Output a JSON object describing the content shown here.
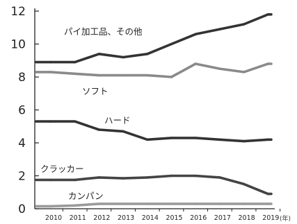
{
  "chart_data": {
    "type": "line",
    "x": [
      2010,
      2011,
      2012,
      2013,
      2014,
      2015,
      2016,
      2017,
      2018,
      2019
    ],
    "x_tick_labels": [
      "2010",
      "2011",
      "2012",
      "2013",
      "2014",
      "2015",
      "2016",
      "2017",
      "2018",
      "2019"
    ],
    "x_unit": "(年)",
    "ylim": [
      0,
      12
    ],
    "y_ticks": [
      0,
      2,
      4,
      6,
      8,
      10,
      12
    ],
    "grid": false,
    "legend": "inline",
    "series": [
      {
        "name": "パイ加工品、その他",
        "color": "#333333",
        "values": [
          8.9,
          8.9,
          9.4,
          9.2,
          9.4,
          10.0,
          10.6,
          10.9,
          11.2,
          11.8
        ]
      },
      {
        "name": "ソフト",
        "color": "#8a8a8a",
        "values": [
          8.3,
          8.2,
          8.1,
          8.1,
          8.1,
          8.0,
          8.8,
          8.5,
          8.3,
          8.8
        ]
      },
      {
        "name": "ハード",
        "color": "#333333",
        "values": [
          5.3,
          5.3,
          4.8,
          4.7,
          4.2,
          4.3,
          4.3,
          4.2,
          4.1,
          4.2
        ]
      },
      {
        "name": "クラッカー",
        "color": "#444444",
        "values": [
          1.75,
          1.75,
          1.9,
          1.85,
          1.9,
          2.0,
          2.0,
          1.9,
          1.5,
          0.9
        ]
      },
      {
        "name": "カンパン",
        "color": "#9a9a9a",
        "values": [
          0.15,
          0.2,
          0.3,
          0.3,
          0.3,
          0.3,
          0.3,
          0.3,
          0.3,
          0.3
        ]
      }
    ]
  }
}
